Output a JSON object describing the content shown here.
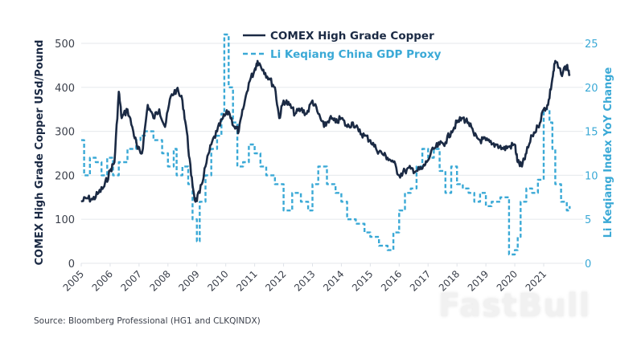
{
  "chart_data": {
    "type": "line",
    "title": "",
    "xlabel": "",
    "ylabel": "COMEX High Grade Copper USd/Pound",
    "y2label": "Li Keqiang Index YoY Change",
    "ylim": [
      0,
      500
    ],
    "y2lim": [
      0,
      25
    ],
    "yticks": [
      "0",
      "100",
      "200",
      "300",
      "400",
      "500"
    ],
    "y2ticks": [
      "0",
      "5",
      "10",
      "15",
      "20",
      "25"
    ],
    "xticks": [
      "2005",
      "2006",
      "2007",
      "2008",
      "2009",
      "2010",
      "2011",
      "2012",
      "2013",
      "2014",
      "2015",
      "2016",
      "2017",
      "2018",
      "2019",
      "2020",
      "2021"
    ],
    "xlim": [
      2005,
      2021.9
    ],
    "grid": true,
    "legend_position": "top-center",
    "series": [
      {
        "name": "COMEX High Grade Copper",
        "axis": "left",
        "style": "solid",
        "color": "#1b2a44",
        "x": [
          2005.0,
          2005.2,
          2005.4,
          2005.6,
          2005.8,
          2006.0,
          2006.15,
          2006.3,
          2006.4,
          2006.6,
          2006.8,
          2006.95,
          2007.1,
          2007.3,
          2007.5,
          2007.7,
          2007.9,
          2008.1,
          2008.3,
          2008.5,
          2008.65,
          2008.8,
          2008.95,
          2009.1,
          2009.3,
          2009.5,
          2009.7,
          2009.9,
          2010.1,
          2010.3,
          2010.45,
          2010.6,
          2010.8,
          2011.0,
          2011.1,
          2011.3,
          2011.5,
          2011.7,
          2011.85,
          2012.0,
          2012.2,
          2012.4,
          2012.6,
          2012.8,
          2013.0,
          2013.2,
          2013.4,
          2013.6,
          2013.8,
          2014.0,
          2014.2,
          2014.4,
          2014.6,
          2014.8,
          2015.0,
          2015.2,
          2015.4,
          2015.6,
          2015.8,
          2016.0,
          2016.2,
          2016.4,
          2016.6,
          2016.8,
          2016.95,
          2017.2,
          2017.4,
          2017.6,
          2017.8,
          2018.0,
          2018.2,
          2018.4,
          2018.6,
          2018.8,
          2019.0,
          2019.2,
          2019.4,
          2019.6,
          2019.8,
          2020.0,
          2020.1,
          2020.25,
          2020.4,
          2020.6,
          2020.8,
          2021.0,
          2021.15,
          2021.3,
          2021.4,
          2021.6,
          2021.8,
          2021.9
        ],
        "values": [
          140,
          148,
          145,
          160,
          175,
          210,
          230,
          390,
          330,
          350,
          300,
          260,
          250,
          360,
          330,
          350,
          310,
          380,
          395,
          370,
          300,
          200,
          140,
          160,
          220,
          270,
          300,
          330,
          345,
          310,
          300,
          350,
          410,
          440,
          460,
          440,
          420,
          400,
          330,
          370,
          360,
          340,
          350,
          340,
          370,
          340,
          310,
          330,
          320,
          330,
          310,
          320,
          300,
          290,
          280,
          260,
          250,
          240,
          230,
          200,
          210,
          215,
          210,
          215,
          230,
          260,
          270,
          275,
          300,
          320,
          330,
          320,
          290,
          280,
          280,
          270,
          270,
          260,
          265,
          270,
          230,
          220,
          250,
          290,
          310,
          350,
          360,
          420,
          460,
          430,
          450,
          430
        ],
        "units": "USd/Pound"
      },
      {
        "name": "Li Keqiang China GDP Proxy",
        "axis": "right",
        "style": "dashed",
        "color": "#3aa9d6",
        "x": [
          2005.0,
          2005.1,
          2005.3,
          2005.5,
          2005.7,
          2005.9,
          2006.1,
          2006.3,
          2006.6,
          2006.9,
          2007.05,
          2007.2,
          2007.5,
          2007.8,
          2008.0,
          2008.2,
          2008.3,
          2008.5,
          2008.7,
          2008.85,
          2009.0,
          2009.1,
          2009.3,
          2009.5,
          2009.7,
          2009.85,
          2009.95,
          2010.1,
          2010.25,
          2010.4,
          2010.6,
          2010.8,
          2011.0,
          2011.2,
          2011.4,
          2011.7,
          2012.0,
          2012.3,
          2012.6,
          2012.85,
          2013.0,
          2013.2,
          2013.5,
          2013.8,
          2014.0,
          2014.2,
          2014.5,
          2014.8,
          2015.0,
          2015.3,
          2015.6,
          2015.8,
          2016.0,
          2016.2,
          2016.4,
          2016.6,
          2016.8,
          2017.0,
          2017.2,
          2017.4,
          2017.6,
          2017.8,
          2018.0,
          2018.2,
          2018.4,
          2018.6,
          2018.8,
          2019.0,
          2019.2,
          2019.5,
          2019.8,
          2020.0,
          2020.1,
          2020.2,
          2020.4,
          2020.6,
          2020.8,
          2021.0,
          2021.2,
          2021.3,
          2021.4,
          2021.6,
          2021.8,
          2021.9
        ],
        "values": [
          14,
          10,
          12,
          11.5,
          10,
          12,
          10,
          11.5,
          13,
          14,
          14.5,
          15,
          14,
          12.5,
          11,
          13,
          10,
          11,
          9,
          5,
          2.5,
          7,
          10,
          13,
          14.5,
          17,
          26,
          20,
          16,
          11,
          11.5,
          13.5,
          12.5,
          11,
          10,
          9,
          6,
          8,
          7,
          6,
          9,
          11,
          9,
          8,
          7,
          5,
          4.5,
          3.5,
          3,
          2,
          1.5,
          3.5,
          6,
          8,
          8.5,
          11,
          13,
          12,
          13,
          10.5,
          8,
          11,
          9,
          8.5,
          8,
          7,
          8,
          6.5,
          7,
          7.5,
          1,
          1.5,
          3,
          7,
          8.5,
          8,
          9.5,
          17.5,
          16,
          13,
          9,
          7,
          6,
          6.5
        ],
        "units": "% YoY"
      }
    ]
  },
  "legend": {
    "items": [
      {
        "label": "COMEX High Grade Copper",
        "style": "solid",
        "color": "#1b2a44"
      },
      {
        "label": "Li Keqiang China GDP Proxy",
        "style": "dashed",
        "color": "#3aa9d6"
      }
    ]
  },
  "source_note": "Source: Bloomberg Professional (HG1 and CLKQINDX)",
  "watermark": "FastBull",
  "colors": {
    "copper": "#1b2a44",
    "gdp_proxy": "#3aa9d6",
    "grid": "#e9ecef",
    "axis_text": "#3a3f4a"
  }
}
